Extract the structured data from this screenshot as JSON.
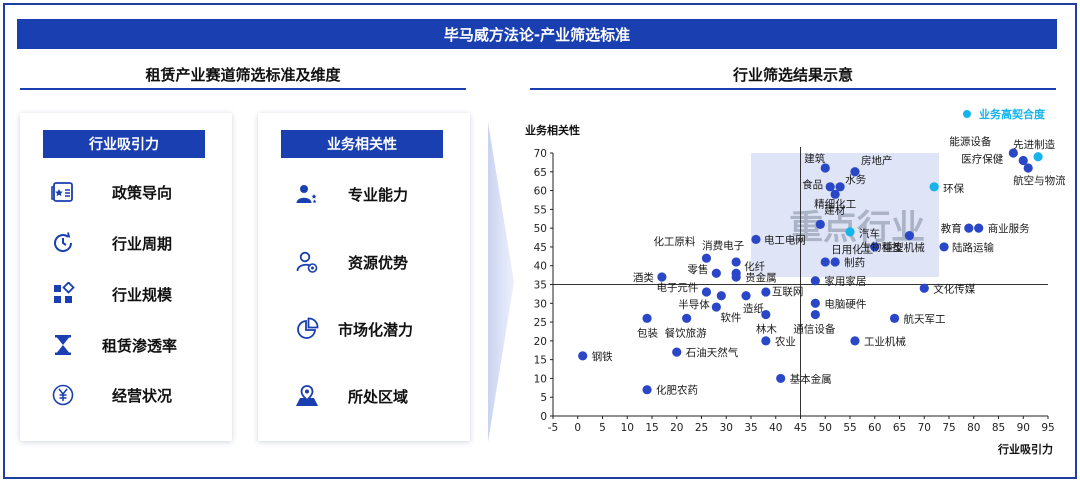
{
  "header": {
    "title": "毕马威方法论-产业筛选标准"
  },
  "left_section": {
    "title": "租赁产业赛道筛选标准及维度"
  },
  "right_section": {
    "title": "行业筛选结果示意"
  },
  "panel_attractiveness": {
    "title": "行业吸引力",
    "items": [
      {
        "label": "政策导向",
        "icon": "policy-document-icon"
      },
      {
        "label": "行业周期",
        "icon": "cycle-clock-icon"
      },
      {
        "label": "行业规模",
        "icon": "scale-grid-icon"
      },
      {
        "label": "租赁渗透率",
        "icon": "hourglass-icon"
      },
      {
        "label": "经营状况",
        "icon": "yen-coin-icon"
      }
    ]
  },
  "panel_relevance": {
    "title": "业务相关性",
    "items": [
      {
        "label": "专业能力",
        "icon": "user-stars-icon"
      },
      {
        "label": "资源优势",
        "icon": "user-resource-icon"
      },
      {
        "label": "市场化潜力",
        "icon": "pie-chart-icon"
      },
      {
        "label": "所处区域",
        "icon": "map-pin-icon"
      }
    ]
  },
  "colors": {
    "primary": "#1a3fb0",
    "point": "#2a47c8",
    "highlight": "#16b4ea",
    "focus_area": "#dfe4f7"
  },
  "chart_data": {
    "type": "scatter",
    "xlabel": "行业吸引力",
    "ylabel": "业务相关性",
    "xlim": [
      -5,
      95
    ],
    "ylim": [
      0,
      70
    ],
    "xticks": [
      -5,
      0,
      5,
      10,
      15,
      20,
      25,
      30,
      35,
      40,
      45,
      50,
      55,
      60,
      65,
      70,
      75,
      80,
      85,
      90,
      95
    ],
    "yticks": [
      0,
      5,
      10,
      15,
      20,
      25,
      30,
      35,
      40,
      45,
      50,
      55,
      60,
      65,
      70
    ],
    "divider_x": 45,
    "divider_y": 35,
    "focus_area": {
      "x": [
        35,
        73
      ],
      "y": [
        37,
        70
      ],
      "label": "重点行业"
    },
    "legend": {
      "label": "业务高契合度",
      "placement": "top-right"
    },
    "points": [
      {
        "name": "建筑",
        "x": 50,
        "y": 66,
        "hi": false,
        "lx": -21,
        "ly": -6
      },
      {
        "name": "房地产",
        "x": 56,
        "y": 65,
        "hi": false,
        "lx": 6,
        "ly": -8
      },
      {
        "name": "食品",
        "x": 51,
        "y": 61,
        "hi": false,
        "lx": -28,
        "ly": 1
      },
      {
        "name": "水务",
        "x": 53,
        "y": 61,
        "hi": false,
        "lx": 5,
        "ly": -4
      },
      {
        "name": "精细化工",
        "x": 52,
        "y": 59,
        "hi": false,
        "lx": -21,
        "ly": 13
      },
      {
        "name": "建材",
        "x": 49,
        "y": 51,
        "hi": false,
        "lx": 4,
        "ly": -11
      },
      {
        "name": "汽车",
        "x": 55,
        "y": 49,
        "hi": true,
        "lx": 9,
        "ly": 5
      },
      {
        "name": "环保",
        "x": 72,
        "y": 61,
        "hi": true,
        "lx": 9,
        "ly": 5
      },
      {
        "name": "能源设备",
        "x": 88,
        "y": 70,
        "hi": false,
        "lx": -64,
        "ly": -8
      },
      {
        "name": "先进制造",
        "x": 93,
        "y": 69,
        "hi": true,
        "lx": -25,
        "ly": -9
      },
      {
        "name": "医疗保健",
        "x": 90,
        "y": 68,
        "hi": false,
        "lx": -62,
        "ly": 2
      },
      {
        "name": "航空与物流",
        "x": 91,
        "y": 66,
        "hi": false,
        "lx": -15,
        "ly": 16
      },
      {
        "name": "教育",
        "x": 79,
        "y": 50,
        "hi": false,
        "lx": -28,
        "ly": 4
      },
      {
        "name": "商业服务",
        "x": 81,
        "y": 50,
        "hi": false,
        "lx": 9,
        "ly": 4
      },
      {
        "name": "电工电网",
        "x": 36,
        "y": 47,
        "hi": false,
        "lx": 8,
        "ly": 4
      },
      {
        "name": "重型机械",
        "x": 60,
        "y": 45,
        "hi": false,
        "lx": 8,
        "ly": 4
      },
      {
        "name": "陆路运输",
        "x": 74,
        "y": 45,
        "hi": false,
        "lx": 8,
        "ly": 4
      },
      {
        "name": "日用化工",
        "x": 50,
        "y": 41,
        "hi": false,
        "lx": 6,
        "ly": -9
      },
      {
        "name": "制药",
        "x": 52,
        "y": 41,
        "hi": false,
        "lx": 9,
        "ly": 4
      },
      {
        "name": "生物科技",
        "x": 67,
        "y": 48,
        "hi": false,
        "lx": -49,
        "ly": 15
      },
      {
        "name": "化工原料",
        "x": 26,
        "y": 42,
        "hi": false,
        "lx": -53,
        "ly": -13
      },
      {
        "name": "消费电子",
        "x": 32,
        "y": 41,
        "hi": false,
        "lx": -34,
        "ly": -13
      },
      {
        "name": "化纤",
        "x": 32,
        "y": 38,
        "hi": false,
        "lx": 8,
        "ly": -3
      },
      {
        "name": "零售",
        "x": 28,
        "y": 38,
        "hi": false,
        "lx": -29,
        "ly": 0
      },
      {
        "name": "贵金属",
        "x": 32,
        "y": 37,
        "hi": false,
        "lx": 9,
        "ly": 4
      },
      {
        "name": "酒类",
        "x": 17,
        "y": 37,
        "hi": false,
        "lx": -29,
        "ly": 4
      },
      {
        "name": "家用家居",
        "x": 48,
        "y": 36,
        "hi": false,
        "lx": 9,
        "ly": 4
      },
      {
        "name": "电子元件",
        "x": 26,
        "y": 33,
        "hi": false,
        "lx": -50,
        "ly": -1
      },
      {
        "name": "互联网",
        "x": 38,
        "y": 33,
        "hi": false,
        "lx": 6,
        "ly": 3
      },
      {
        "name": "半导体",
        "x": 29,
        "y": 32,
        "hi": false,
        "lx": -43,
        "ly": 12
      },
      {
        "name": "文化传媒",
        "x": 70,
        "y": 34,
        "hi": false,
        "lx": 9,
        "ly": 4
      },
      {
        "name": "造纸",
        "x": 34,
        "y": 32,
        "hi": false,
        "lx": -3,
        "ly": 16
      },
      {
        "name": "电脑硬件",
        "x": 48,
        "y": 30,
        "hi": false,
        "lx": 9,
        "ly": 4
      },
      {
        "name": "软件",
        "x": 28,
        "y": 29,
        "hi": false,
        "lx": 4,
        "ly": 14
      },
      {
        "name": "包装",
        "x": 14,
        "y": 26,
        "hi": false,
        "lx": -10,
        "ly": 18
      },
      {
        "name": "餐饮旅游",
        "x": 22,
        "y": 26,
        "hi": false,
        "lx": -22,
        "ly": 18
      },
      {
        "name": "林木",
        "x": 38,
        "y": 27,
        "hi": false,
        "lx": -10,
        "ly": 18
      },
      {
        "name": "航天军工",
        "x": 64,
        "y": 26,
        "hi": false,
        "lx": 9,
        "ly": 4
      },
      {
        "name": "通信设备",
        "x": 48,
        "y": 27,
        "hi": false,
        "lx": -22,
        "ly": 18
      },
      {
        "name": "农业",
        "x": 38,
        "y": 20,
        "hi": false,
        "lx": 9,
        "ly": 4
      },
      {
        "name": "工业机械",
        "x": 56,
        "y": 20,
        "hi": false,
        "lx": 9,
        "ly": 4
      },
      {
        "name": "石油天然气",
        "x": 20,
        "y": 17,
        "hi": false,
        "lx": 9,
        "ly": 4
      },
      {
        "name": "钢铁",
        "x": 1,
        "y": 16,
        "hi": false,
        "lx": 9,
        "ly": 4
      },
      {
        "name": "基本金属",
        "x": 41,
        "y": 10,
        "hi": false,
        "lx": 9,
        "ly": 4
      },
      {
        "name": "化肥农药",
        "x": 14,
        "y": 7,
        "hi": false,
        "lx": 9,
        "ly": 4
      }
    ]
  }
}
